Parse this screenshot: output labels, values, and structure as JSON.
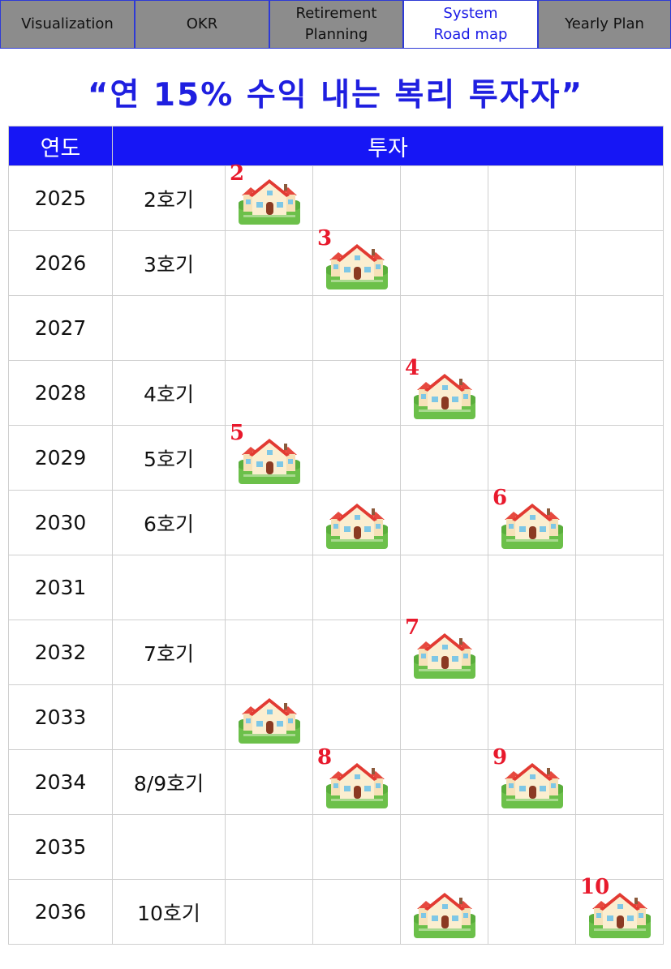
{
  "tabs": [
    {
      "label": "Visualization",
      "active": false
    },
    {
      "label": "OKR",
      "active": false
    },
    {
      "label": "Retirement\nPlanning",
      "active": false
    },
    {
      "label": "System\nRoad map",
      "active": true
    },
    {
      "label": "Yearly  Plan",
      "active": false
    }
  ],
  "title": "“연 15% 수익 내는 복리 투자자”",
  "table": {
    "header_year": "연도",
    "header_invest": "투자",
    "rows": [
      {
        "year": "2025",
        "unit": "2호기",
        "houses": [
          {
            "col": 0,
            "label": "2"
          }
        ]
      },
      {
        "year": "2026",
        "unit": "3호기",
        "houses": [
          {
            "col": 1,
            "label": "3"
          }
        ]
      },
      {
        "year": "2027",
        "unit": "",
        "houses": []
      },
      {
        "year": "2028",
        "unit": "4호기",
        "houses": [
          {
            "col": 2,
            "label": "4"
          }
        ]
      },
      {
        "year": "2029",
        "unit": "5호기",
        "houses": [
          {
            "col": 0,
            "label": "5"
          }
        ]
      },
      {
        "year": "2030",
        "unit": "6호기",
        "houses": [
          {
            "col": 1,
            "label": ""
          },
          {
            "col": 3,
            "label": "6"
          }
        ]
      },
      {
        "year": "2031",
        "unit": "",
        "houses": []
      },
      {
        "year": "2032",
        "unit": "7호기",
        "houses": [
          {
            "col": 2,
            "label": "7"
          }
        ]
      },
      {
        "year": "2033",
        "unit": "",
        "houses": [
          {
            "col": 0,
            "label": ""
          }
        ]
      },
      {
        "year": "2034",
        "unit": "8/9호기",
        "houses": [
          {
            "col": 1,
            "label": "8"
          },
          {
            "col": 3,
            "label": "9"
          }
        ]
      },
      {
        "year": "2035",
        "unit": "",
        "houses": []
      },
      {
        "year": "2036",
        "unit": "10호기",
        "houses": [
          {
            "col": 2,
            "label": ""
          },
          {
            "col": 4,
            "label": "10"
          }
        ]
      }
    ]
  },
  "icon": "house-icon",
  "colors": {
    "header_bg": "#1616f5",
    "title": "#1f1fe0",
    "tab_bg": "#8c8c8c",
    "marker": "#e8192c"
  }
}
